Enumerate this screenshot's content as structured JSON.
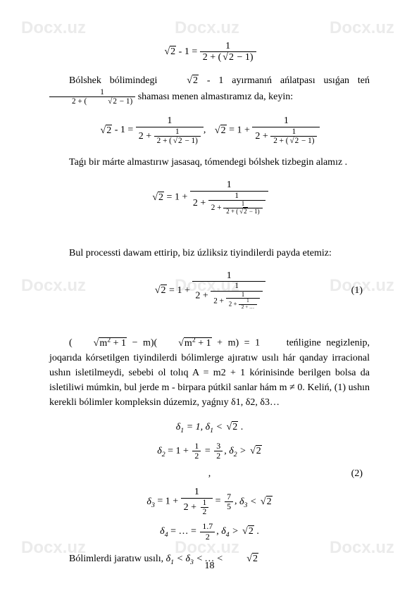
{
  "watermark": "Docx.uz",
  "eq_top": "√2 - 1 = 1 / (2 + (√2 − 1))",
  "para1_a": "Bólshek bólimindegi ",
  "para1_b": " - 1 ayırmanıń ańlatpası usıǵan teń ",
  "para1_c": " shaması menen almastıramız da, keyin:",
  "eq_mid1": "√2 - 1 = 1 / (2 + 1/(2+(√2−1))),  √2 = 1 + 1 / (2 + 1/(2+(√2−1)))",
  "para2": "Taǵı bir márte almastırıw jasasaq, tómendegi bólshek tizbegin alamız .",
  "eq_mid2": "√2 = 1 + 1 / (2 + 1 / (2 + 1/(2+(√2−1))))",
  "para3": "Bul processti dawam ettirip, biz úzliksiz tiyindilerdi payda etemiz:",
  "eq_1": "√2 = 1 + 1/(2 + 1/(2 + 1/(2 + 1/(2 + …))))",
  "eqnum1": "(1)",
  "para4_a": "(√(m²+1) − m)(√(m²+1) + m) = 1",
  "para4_b": "teńligine negizlenip, joqarıda kórsetilgen tiyindilerdi bólimlerge ajıratıw usılı hár qanday irracional ushın isletilmeydi, sebebi ol tolıq A = m2 + 1 kórinisinde berilgen bolsa da isletiliwi múmkin, bul jerde m - birpara pútkil sanlar hám m ≠ 0. Keliń, (1) ushın kerekli bólimler kompleksin dúzemiz, yaǵnıy δ1, δ2, δ3…",
  "d1": "δ₁ = 1, δ₁ < √2 .",
  "d2": "δ₂ = 1 + 1/2 = 3/2, δ₂ > √2",
  "comma": ",",
  "eqnum2": "(2)",
  "d3": "δ₃ = 1 + 1/(2 + 1/2) = 7/5, δ₃ < √2",
  "d4": "δ₄ = … = 1.7/2, δ₄ > √2 .",
  "para5": "Bólimlerdi jaratıw usılı, δ₁ < δ₃ < … < √2",
  "page": "18"
}
